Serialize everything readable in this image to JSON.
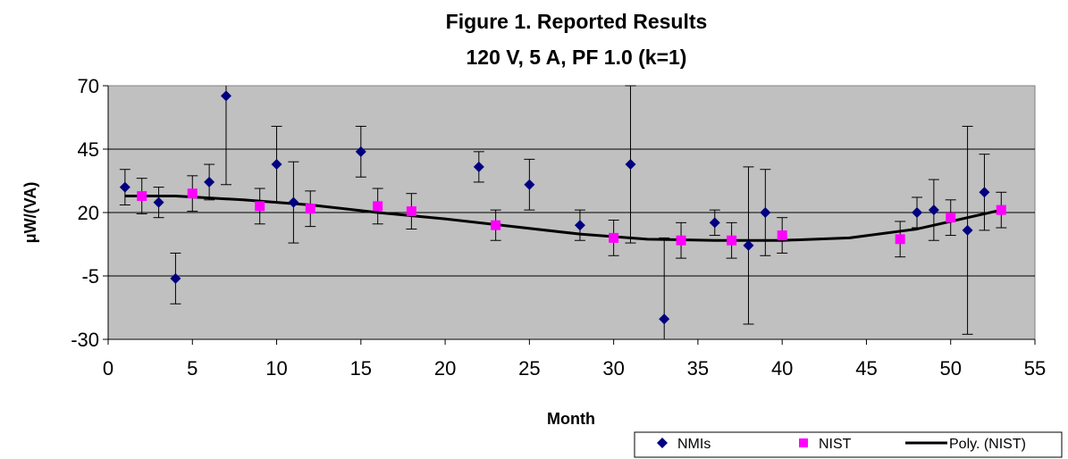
{
  "chart_data": {
    "type": "scatter",
    "title": "Figure 1.  Reported Results",
    "subtitle": "120 V, 5 A, PF 1.0 (k=1)",
    "xlabel": "Month",
    "ylabel": "μW/(VA)",
    "xlim": [
      0,
      55
    ],
    "ylim": [
      -30,
      70
    ],
    "xticks": [
      0,
      5,
      10,
      15,
      20,
      25,
      30,
      35,
      40,
      45,
      50,
      55
    ],
    "yticks": [
      -30,
      -5,
      20,
      45,
      70
    ],
    "grid": "horizontal",
    "plot_background": "#c0c0c0",
    "legend_position": "bottom-right",
    "series": [
      {
        "name": "NMIs",
        "marker": "diamond",
        "color": "#000080",
        "points": [
          {
            "x": 1,
            "y": 30,
            "err": 7
          },
          {
            "x": 3,
            "y": 24,
            "err": 6
          },
          {
            "x": 4,
            "y": -6,
            "err": 10
          },
          {
            "x": 6,
            "y": 32,
            "err": 7
          },
          {
            "x": 7,
            "y": 66,
            "err": 35
          },
          {
            "x": 10,
            "y": 39,
            "err": 15
          },
          {
            "x": 11,
            "y": 24,
            "err": 16
          },
          {
            "x": 15,
            "y": 44,
            "err": 10
          },
          {
            "x": 22,
            "y": 38,
            "err": 6
          },
          {
            "x": 25,
            "y": 31,
            "err": 10
          },
          {
            "x": 28,
            "y": 15,
            "err": 6
          },
          {
            "x": 31,
            "y": 39,
            "err": 31
          },
          {
            "x": 33,
            "y": -22,
            "err": 32
          },
          {
            "x": 36,
            "y": 16,
            "err": 5
          },
          {
            "x": 38,
            "y": 7,
            "err": 31
          },
          {
            "x": 39,
            "y": 20,
            "err": 17
          },
          {
            "x": 48,
            "y": 20,
            "err": 6
          },
          {
            "x": 49,
            "y": 21,
            "err": 12
          },
          {
            "x": 51,
            "y": 13,
            "err": 41
          },
          {
            "x": 52,
            "y": 28,
            "err": 15
          }
        ]
      },
      {
        "name": "NIST",
        "marker": "square",
        "color": "#ff00ff",
        "points": [
          {
            "x": 2,
            "y": 26.5,
            "err": 7
          },
          {
            "x": 5,
            "y": 27.5,
            "err": 7
          },
          {
            "x": 9,
            "y": 22.5,
            "err": 7
          },
          {
            "x": 12,
            "y": 21.5,
            "err": 7
          },
          {
            "x": 16,
            "y": 22.5,
            "err": 7
          },
          {
            "x": 18,
            "y": 20.5,
            "err": 7
          },
          {
            "x": 23,
            "y": 15,
            "err": 6
          },
          {
            "x": 30,
            "y": 10,
            "err": 7
          },
          {
            "x": 34,
            "y": 9,
            "err": 7
          },
          {
            "x": 37,
            "y": 9,
            "err": 7
          },
          {
            "x": 40,
            "y": 11,
            "err": 7
          },
          {
            "x": 47,
            "y": 9.5,
            "err": 7
          },
          {
            "x": 50,
            "y": 18,
            "err": 7
          },
          {
            "x": 53,
            "y": 21,
            "err": 7
          }
        ]
      },
      {
        "name": "Poly. (NIST)",
        "type": "line",
        "color": "#000000",
        "points": [
          {
            "x": 1,
            "y": 26.5
          },
          {
            "x": 4,
            "y": 26.5
          },
          {
            "x": 8,
            "y": 25
          },
          {
            "x": 12,
            "y": 23
          },
          {
            "x": 16,
            "y": 20
          },
          {
            "x": 20,
            "y": 17.5
          },
          {
            "x": 24,
            "y": 14.5
          },
          {
            "x": 28,
            "y": 11.5
          },
          {
            "x": 32,
            "y": 9.5
          },
          {
            "x": 36,
            "y": 9
          },
          {
            "x": 40,
            "y": 9
          },
          {
            "x": 44,
            "y": 10
          },
          {
            "x": 48,
            "y": 13.5
          },
          {
            "x": 53,
            "y": 21
          }
        ]
      }
    ]
  }
}
